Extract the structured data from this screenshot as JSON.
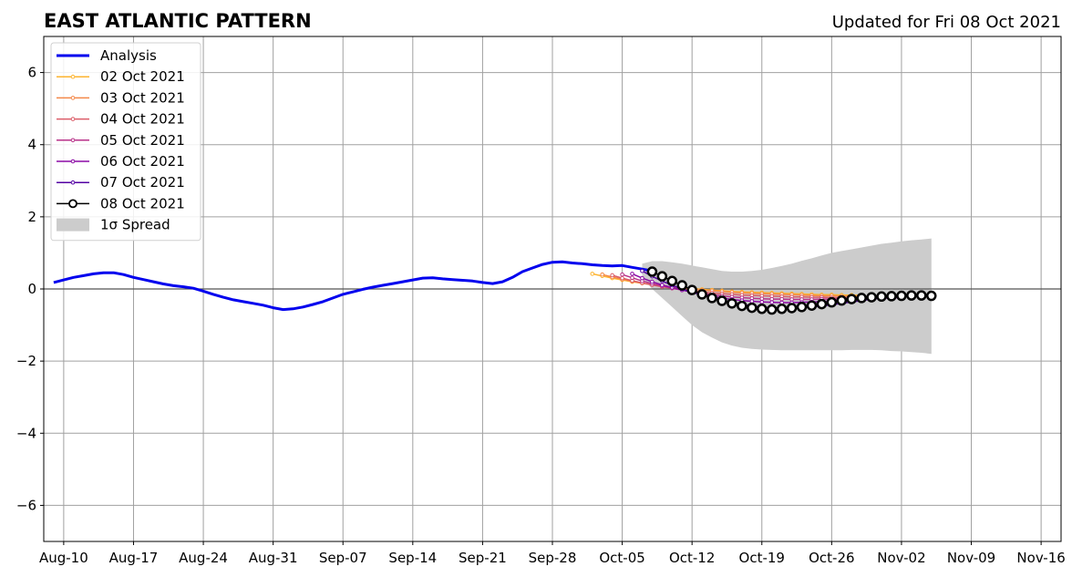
{
  "chart_data": {
    "type": "line",
    "title": "EAST ATLANTIC PATTERN",
    "subtitle": "Updated for Fri 08 Oct 2021",
    "x_start": "2021-08-08",
    "xlim_days": [
      0,
      102
    ],
    "ylim": [
      -7,
      7
    ],
    "grid": true,
    "legend_placement": "upper-left",
    "x_ticks": [
      {
        "day": 2,
        "label": "Aug-10"
      },
      {
        "day": 9,
        "label": "Aug-17"
      },
      {
        "day": 16,
        "label": "Aug-24"
      },
      {
        "day": 23,
        "label": "Aug-31"
      },
      {
        "day": 30,
        "label": "Sep-07"
      },
      {
        "day": 37,
        "label": "Sep-14"
      },
      {
        "day": 44,
        "label": "Sep-21"
      },
      {
        "day": 51,
        "label": "Sep-28"
      },
      {
        "day": 58,
        "label": "Oct-05"
      },
      {
        "day": 65,
        "label": "Oct-12"
      },
      {
        "day": 72,
        "label": "Oct-19"
      },
      {
        "day": 79,
        "label": "Oct-26"
      },
      {
        "day": 86,
        "label": "Nov-02"
      },
      {
        "day": 93,
        "label": "Nov-09"
      },
      {
        "day": 100,
        "label": "Nov-16"
      }
    ],
    "y_ticks": [
      {
        "value": 6,
        "label": "6"
      },
      {
        "value": 4,
        "label": "4"
      },
      {
        "value": 2,
        "label": "2"
      },
      {
        "value": 0,
        "label": "0"
      },
      {
        "value": -2,
        "label": "−2"
      },
      {
        "value": -4,
        "label": "−4"
      },
      {
        "value": -6,
        "label": "−6"
      }
    ],
    "analysis": {
      "name": "Analysis",
      "color": "#0000ee",
      "x": [
        1,
        2,
        3,
        4,
        5,
        6,
        7,
        8,
        9,
        10,
        11,
        12,
        13,
        14,
        15,
        16,
        17,
        18,
        19,
        20,
        21,
        22,
        23,
        24,
        25,
        26,
        27,
        28,
        29,
        30,
        31,
        32,
        33,
        34,
        35,
        36,
        37,
        38,
        39,
        40,
        41,
        42,
        43,
        44,
        45,
        46,
        47,
        48,
        49,
        50,
        51,
        52,
        53,
        54,
        55,
        56,
        57,
        58,
        59,
        60,
        61
      ],
      "y": [
        0.18,
        0.25,
        0.32,
        0.37,
        0.42,
        0.45,
        0.45,
        0.4,
        0.32,
        0.26,
        0.2,
        0.14,
        0.09,
        0.06,
        0.02,
        -0.06,
        -0.15,
        -0.23,
        -0.3,
        -0.35,
        -0.4,
        -0.45,
        -0.52,
        -0.57,
        -0.55,
        -0.5,
        -0.43,
        -0.35,
        -0.25,
        -0.15,
        -0.08,
        -0.01,
        0.05,
        0.1,
        0.15,
        0.2,
        0.25,
        0.3,
        0.31,
        0.28,
        0.26,
        0.24,
        0.22,
        0.18,
        0.15,
        0.2,
        0.32,
        0.48,
        0.58,
        0.68,
        0.74,
        0.75,
        0.72,
        0.7,
        0.67,
        0.65,
        0.64,
        0.65,
        0.6,
        0.55,
        0.5
      ]
    },
    "forecasts": [
      {
        "name": "02 Oct 2021",
        "color": "#fdb42f",
        "x": [
          55,
          56,
          57,
          58,
          59,
          60,
          61,
          62,
          63,
          64,
          65,
          66,
          67,
          68,
          69,
          70,
          71,
          72,
          73,
          74,
          75,
          76,
          77,
          78,
          79,
          80,
          81,
          82
        ],
        "y": [
          0.42,
          0.36,
          0.3,
          0.25,
          0.2,
          0.16,
          0.12,
          0.08,
          0.05,
          0.03,
          0.01,
          -0.01,
          -0.03,
          -0.05,
          -0.07,
          -0.08,
          -0.09,
          -0.1,
          -0.11,
          -0.12,
          -0.13,
          -0.14,
          -0.15,
          -0.16,
          -0.16,
          -0.17,
          -0.17,
          -0.18
        ]
      },
      {
        "name": "03 Oct 2021",
        "color": "#f48849",
        "x": [
          56,
          57,
          58,
          59,
          60,
          61,
          62,
          63,
          64,
          65,
          66,
          67,
          68,
          69,
          70,
          71,
          72,
          73,
          74,
          75,
          76,
          77,
          78,
          79,
          80,
          81,
          82,
          83
        ],
        "y": [
          0.4,
          0.33,
          0.27,
          0.21,
          0.16,
          0.12,
          0.08,
          0.05,
          0.02,
          0.0,
          -0.03,
          -0.05,
          -0.07,
          -0.09,
          -0.11,
          -0.12,
          -0.13,
          -0.14,
          -0.15,
          -0.16,
          -0.17,
          -0.18,
          -0.19,
          -0.19,
          -0.2,
          -0.2,
          -0.21,
          -0.21
        ]
      },
      {
        "name": "04 Oct 2021",
        "color": "#db5c68",
        "x": [
          57,
          58,
          59,
          60,
          61,
          62,
          63,
          64,
          65,
          66,
          67,
          68,
          69,
          70,
          71,
          72,
          73,
          74,
          75,
          76,
          77,
          78,
          79,
          80,
          81,
          82,
          83,
          84
        ],
        "y": [
          0.38,
          0.3,
          0.23,
          0.17,
          0.11,
          0.06,
          0.02,
          -0.02,
          -0.05,
          -0.08,
          -0.11,
          -0.13,
          -0.15,
          -0.17,
          -0.18,
          -0.19,
          -0.2,
          -0.21,
          -0.22,
          -0.22,
          -0.23,
          -0.23,
          -0.24,
          -0.24,
          -0.24,
          -0.24,
          -0.24,
          -0.24
        ]
      },
      {
        "name": "05 Oct 2021",
        "color": "#b83289",
        "x": [
          58,
          59,
          60,
          61,
          62,
          63,
          64,
          65,
          66,
          67,
          68,
          69,
          70,
          71,
          72,
          73,
          74,
          75,
          76,
          77,
          78,
          79,
          80,
          81,
          82,
          83,
          84,
          85
        ],
        "y": [
          0.4,
          0.31,
          0.22,
          0.15,
          0.08,
          0.02,
          -0.03,
          -0.08,
          -0.12,
          -0.16,
          -0.19,
          -0.22,
          -0.24,
          -0.26,
          -0.27,
          -0.28,
          -0.28,
          -0.29,
          -0.29,
          -0.29,
          -0.28,
          -0.28,
          -0.27,
          -0.26,
          -0.26,
          -0.25,
          -0.25,
          -0.24
        ]
      },
      {
        "name": "06 Oct 2021",
        "color": "#8b0aa5",
        "x": [
          59,
          60,
          61,
          62,
          63,
          64,
          65,
          66,
          67,
          68,
          69,
          70,
          71,
          72,
          73,
          74,
          75,
          76,
          77,
          78,
          79,
          80,
          81,
          82,
          83,
          84,
          85,
          86
        ],
        "y": [
          0.42,
          0.3,
          0.2,
          0.11,
          0.04,
          -0.03,
          -0.09,
          -0.15,
          -0.2,
          -0.25,
          -0.29,
          -0.32,
          -0.34,
          -0.36,
          -0.37,
          -0.38,
          -0.38,
          -0.37,
          -0.36,
          -0.35,
          -0.33,
          -0.31,
          -0.3,
          -0.28,
          -0.27,
          -0.26,
          -0.25,
          -0.24
        ]
      },
      {
        "name": "07 Oct 2021",
        "color": "#5302a3",
        "x": [
          60,
          61,
          62,
          63,
          64,
          65,
          66,
          67,
          68,
          69,
          70,
          71,
          72,
          73,
          74,
          75,
          76,
          77,
          78,
          79,
          80,
          81,
          82,
          83,
          84,
          85,
          86,
          87
        ],
        "y": [
          0.5,
          0.35,
          0.22,
          0.1,
          0.0,
          -0.09,
          -0.17,
          -0.25,
          -0.32,
          -0.38,
          -0.43,
          -0.47,
          -0.5,
          -0.52,
          -0.53,
          -0.53,
          -0.52,
          -0.5,
          -0.47,
          -0.44,
          -0.4,
          -0.36,
          -0.32,
          -0.28,
          -0.25,
          -0.22,
          -0.2,
          -0.18
        ]
      },
      {
        "name": "08 Oct 2021",
        "color": "#000000",
        "x": [
          61,
          62,
          63,
          64,
          65,
          66,
          67,
          68,
          69,
          70,
          71,
          72,
          73,
          74,
          75,
          76,
          77,
          78,
          79,
          80,
          81,
          82,
          83,
          84,
          85,
          86,
          87,
          88,
          89
        ],
        "y": [
          0.48,
          0.35,
          0.22,
          0.1,
          -0.03,
          -0.15,
          -0.25,
          -0.33,
          -0.4,
          -0.47,
          -0.52,
          -0.55,
          -0.57,
          -0.55,
          -0.53,
          -0.5,
          -0.46,
          -0.42,
          -0.37,
          -0.32,
          -0.28,
          -0.25,
          -0.23,
          -0.21,
          -0.2,
          -0.19,
          -0.18,
          -0.18,
          -0.19
        ]
      }
    ],
    "spread": {
      "name": "1σ Spread",
      "color": "#cccccc",
      "x": [
        60,
        61,
        62,
        63,
        64,
        65,
        66,
        67,
        68,
        69,
        70,
        71,
        72,
        73,
        74,
        75,
        76,
        77,
        78,
        79,
        80,
        81,
        82,
        83,
        84,
        85,
        86,
        87,
        88,
        89
      ],
      "upper": [
        0.7,
        0.77,
        0.77,
        0.74,
        0.7,
        0.65,
        0.6,
        0.55,
        0.5,
        0.48,
        0.48,
        0.5,
        0.53,
        0.58,
        0.64,
        0.7,
        0.78,
        0.85,
        0.93,
        1.0,
        1.05,
        1.1,
        1.15,
        1.2,
        1.25,
        1.28,
        1.32,
        1.35,
        1.37,
        1.4
      ],
      "lower": [
        0.3,
        0.0,
        -0.25,
        -0.5,
        -0.75,
        -1.0,
        -1.2,
        -1.35,
        -1.48,
        -1.57,
        -1.63,
        -1.66,
        -1.68,
        -1.69,
        -1.7,
        -1.7,
        -1.7,
        -1.7,
        -1.7,
        -1.7,
        -1.7,
        -1.69,
        -1.69,
        -1.69,
        -1.7,
        -1.72,
        -1.73,
        -1.75,
        -1.77,
        -1.8
      ]
    }
  }
}
